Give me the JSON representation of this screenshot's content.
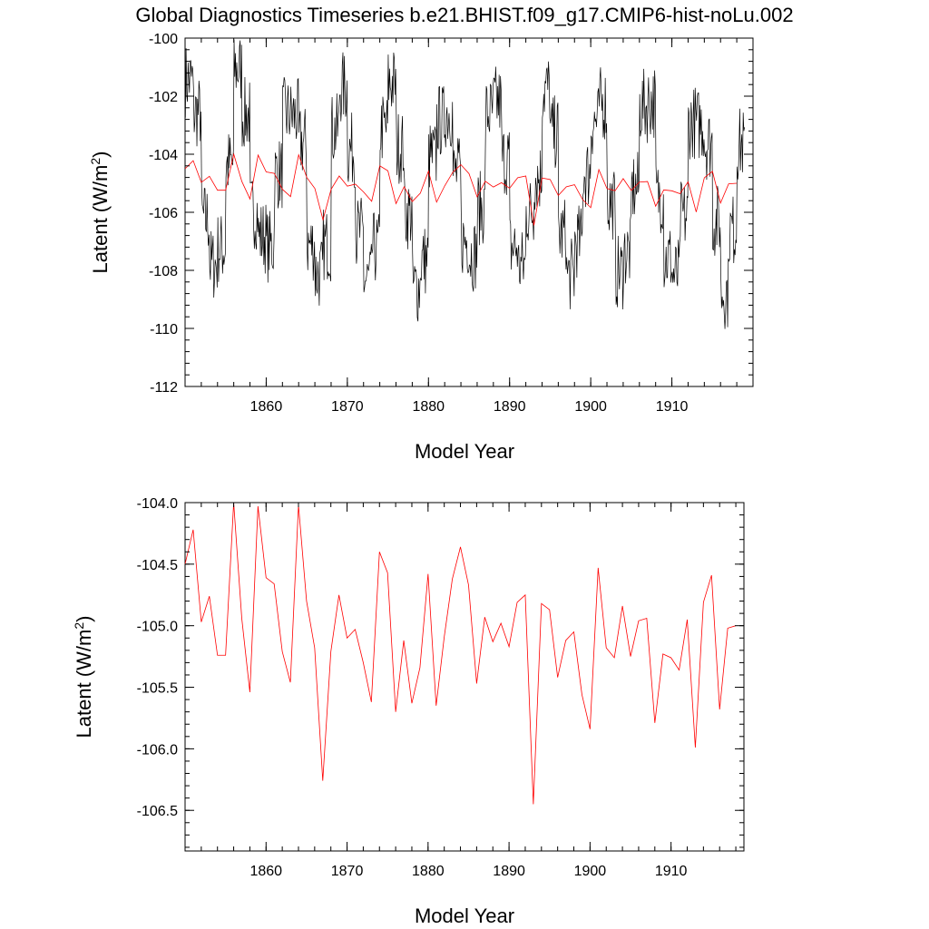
{
  "title": "Global Diagnostics Timeseries b.e21.BHIST.f09_g17.CMIP6-hist-noLu.002",
  "colors": {
    "monthly": "#000000",
    "annual": "#ff0000",
    "axis": "#000000"
  },
  "chart_data": [
    {
      "type": "line",
      "xlabel": "Model Year",
      "ylabel_main": "Latent (W/m",
      "ylabel_sup": "2",
      "ylabel_end": ")",
      "xlim": [
        1850,
        1920
      ],
      "ylim": [
        -112,
        -100
      ],
      "xticks": [
        1860,
        1870,
        1880,
        1890,
        1900,
        1910
      ],
      "xtick_labels": [
        "1860",
        "1870",
        "1880",
        "1890",
        "1900",
        "1910"
      ],
      "yticks": [
        -112,
        -110,
        -108,
        -106,
        -104,
        -102,
        -100
      ],
      "ytick_labels": [
        "-112",
        "-110",
        "-108",
        "-106",
        "-104",
        "-102",
        "-100"
      ],
      "grid": false,
      "series": [
        {
          "key": "monthly",
          "color": "#000000",
          "start": 1850.04,
          "step": 0.0833333,
          "seasonal_amplitude": 3.4,
          "noise": 1.3,
          "mean_from": "annual"
        },
        {
          "key": "annual",
          "color": "#ff0000",
          "start": 1850,
          "step": 1,
          "from": "annual_values"
        }
      ]
    },
    {
      "type": "line",
      "xlabel": "Model Year",
      "ylabel_main": "Latent (W/m",
      "ylabel_sup": "2",
      "ylabel_end": ")",
      "xlim": [
        1850,
        1919
      ],
      "ylim": [
        -106.83,
        -104.0
      ],
      "xticks": [
        1860,
        1870,
        1880,
        1890,
        1900,
        1910
      ],
      "xtick_labels": [
        "1860",
        "1870",
        "1880",
        "1890",
        "1900",
        "1910"
      ],
      "yticks": [
        -106.5,
        -106.0,
        -105.5,
        -105.0,
        -104.5,
        -104.0
      ],
      "ytick_labels": [
        "-106.5",
        "-106.0",
        "-105.5",
        "-105.0",
        "-104.5",
        "-104.0"
      ],
      "grid": false,
      "series": [
        {
          "key": "annual",
          "color": "#ff0000",
          "start": 1850,
          "step": 1,
          "from": "annual_values"
        }
      ]
    }
  ],
  "annual_values": [
    -104.5,
    -104.22,
    -104.97,
    -104.76,
    -105.24,
    -105.24,
    -104.0,
    -104.94,
    -105.54,
    -104.03,
    -104.61,
    -104.66,
    -105.21,
    -105.46,
    -104.02,
    -104.8,
    -105.18,
    -106.26,
    -105.21,
    -104.75,
    -105.1,
    -105.03,
    -105.3,
    -105.62,
    -104.4,
    -104.57,
    -105.7,
    -105.12,
    -105.63,
    -105.34,
    -104.58,
    -105.65,
    -105.09,
    -104.62,
    -104.36,
    -104.67,
    -105.47,
    -104.93,
    -105.13,
    -104.98,
    -105.17,
    -104.81,
    -104.75,
    -106.45,
    -104.82,
    -104.87,
    -105.42,
    -105.12,
    -105.05,
    -105.56,
    -105.84,
    -104.53,
    -105.18,
    -105.26,
    -104.84,
    -105.25,
    -104.96,
    -104.94,
    -105.79,
    -105.23,
    -105.26,
    -105.36,
    -104.95,
    -105.99,
    -104.81,
    -104.59,
    -105.68,
    -105.02,
    -105.0
  ]
}
